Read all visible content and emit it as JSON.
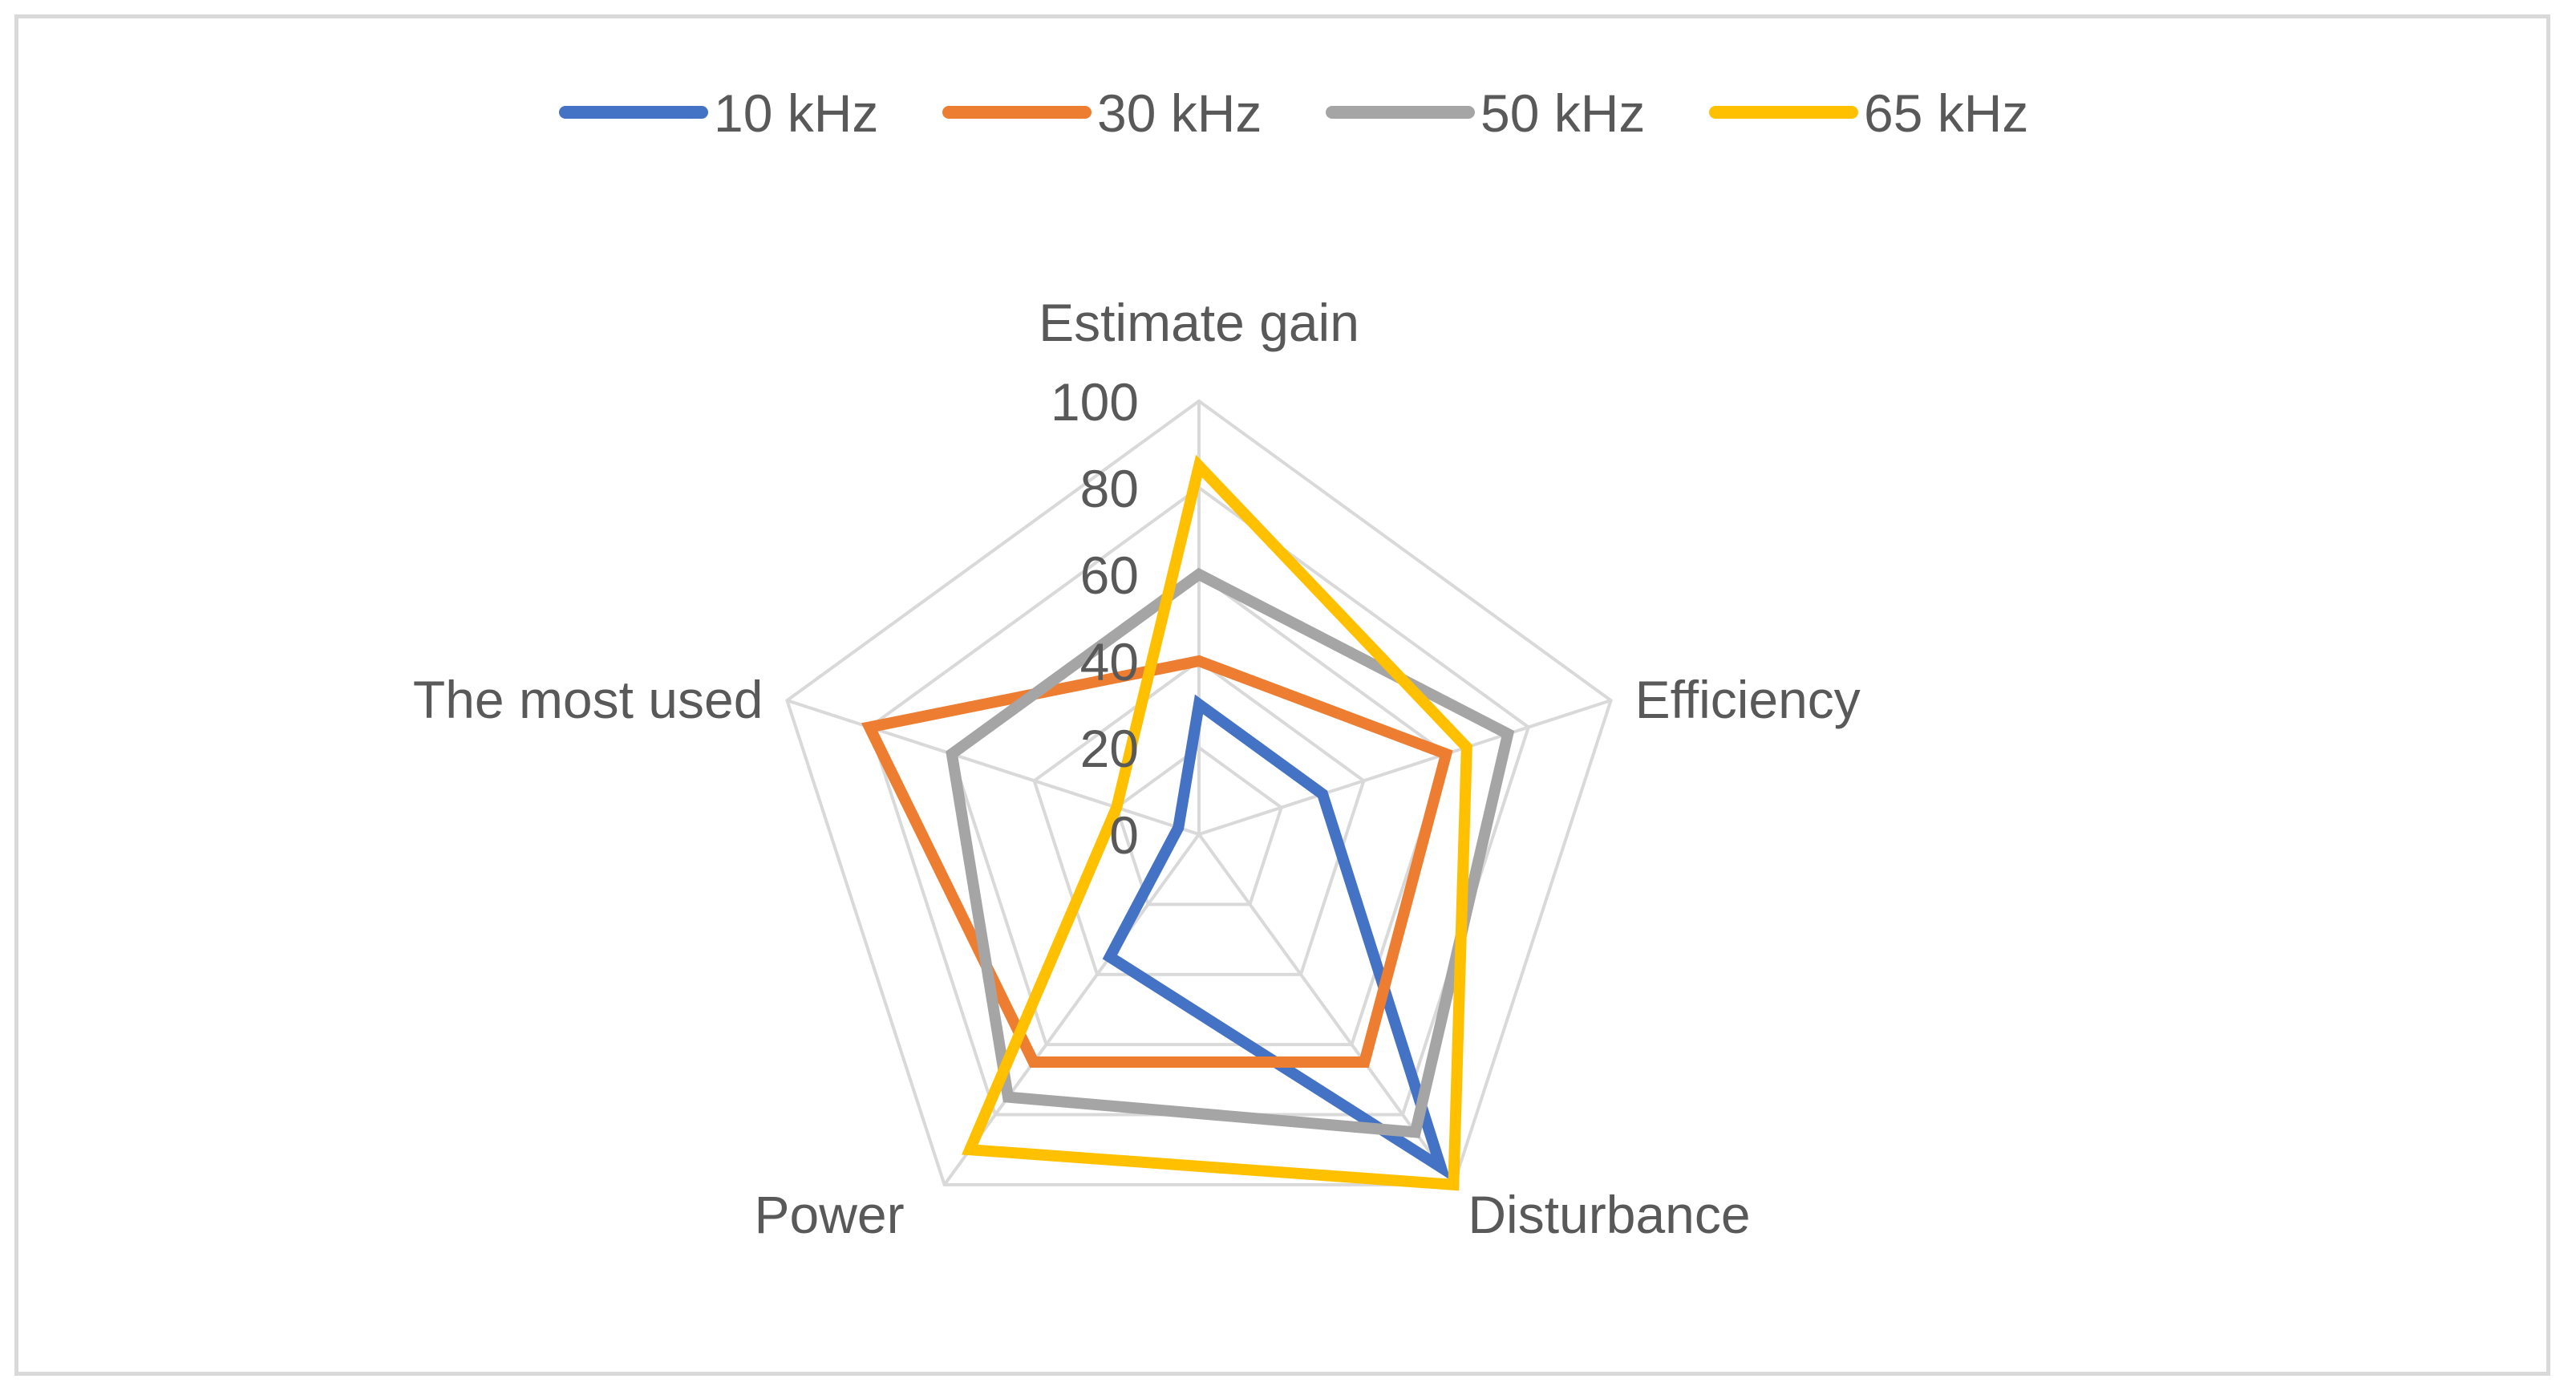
{
  "chart_data": {
    "type": "radar",
    "title": "",
    "axes": [
      "Estimate gain",
      "Efficiency",
      "Disturbance",
      "Power",
      "The most used"
    ],
    "rlim": [
      0,
      100
    ],
    "ticks": [
      "0",
      "20",
      "40",
      "60",
      "80",
      "100"
    ],
    "tick_values": [
      0,
      20,
      40,
      60,
      80,
      100
    ],
    "grid": true,
    "legend_position": "top",
    "series": [
      {
        "name": "10 kHz",
        "color": "#4472C4",
        "values": [
          30,
          30,
          95,
          35,
          5
        ]
      },
      {
        "name": "30 kHz",
        "color": "#ED7D31",
        "values": [
          40,
          60,
          65,
          65,
          80
        ]
      },
      {
        "name": "50 kHz",
        "color": "#A5A5A5",
        "values": [
          60,
          75,
          85,
          75,
          60
        ]
      },
      {
        "name": "65 kHz",
        "color": "#FFC000",
        "values": [
          85,
          65,
          100,
          90,
          20
        ]
      }
    ]
  }
}
